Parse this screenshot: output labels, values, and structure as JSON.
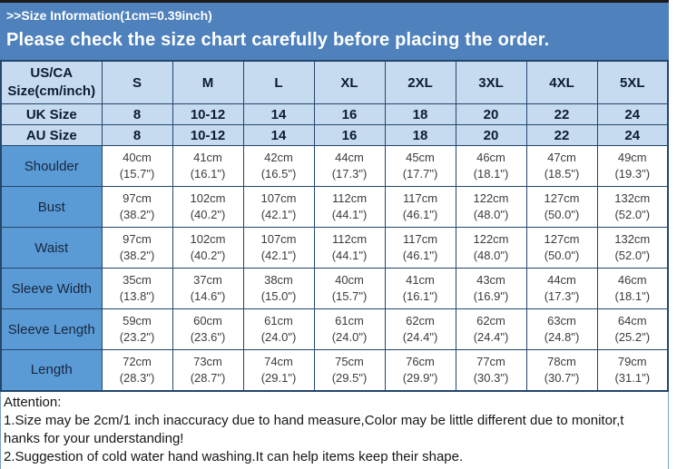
{
  "banner": {
    "size_info": ">>Size Information(1cm=0.39inch)",
    "notice": "Please check the size chart carefully before placing the order."
  },
  "table": {
    "corner_label_line1": "US/CA",
    "corner_label_line2": "Size(cm/inch)",
    "size_columns": [
      "S",
      "M",
      "L",
      "XL",
      "2XL",
      "3XL",
      "4XL",
      "5XL"
    ],
    "conversion_rows": [
      {
        "label": "UK Size",
        "values": [
          "8",
          "10-12",
          "14",
          "16",
          "18",
          "20",
          "22",
          "24"
        ]
      },
      {
        "label": "AU Size",
        "values": [
          "8",
          "10-12",
          "14",
          "16",
          "18",
          "20",
          "22",
          "24"
        ]
      }
    ],
    "measurement_rows": [
      {
        "label": "Shoulder",
        "cm": [
          "40cm",
          "41cm",
          "42cm",
          "44cm",
          "45cm",
          "46cm",
          "47cm",
          "49cm"
        ],
        "inch": [
          "(15.7\")",
          "(16.1\")",
          "(16.5\")",
          "(17.3\")",
          "(17.7\")",
          "(18.1\")",
          "(18.5\")",
          "(19.3\")"
        ]
      },
      {
        "label": "Bust",
        "cm": [
          "97cm",
          "102cm",
          "107cm",
          "112cm",
          "117cm",
          "122cm",
          "127cm",
          "132cm"
        ],
        "inch": [
          "(38.2\")",
          "(40.2\")",
          "(42.1\")",
          "(44.1\")",
          "(46.1\")",
          "(48.0\")",
          "(50.0\")",
          "(52.0\")"
        ]
      },
      {
        "label": "Waist",
        "cm": [
          "97cm",
          "102cm",
          "107cm",
          "112cm",
          "117cm",
          "122cm",
          "127cm",
          "132cm"
        ],
        "inch": [
          "(38.2\")",
          "(40.2\")",
          "(42.1\")",
          "(44.1\")",
          "(46.1\")",
          "(48.0\")",
          "(50.0\")",
          "(52.0\")"
        ]
      },
      {
        "label": "Sleeve Width",
        "cm": [
          "35cm",
          "37cm",
          "38cm",
          "40cm",
          "41cm",
          "43cm",
          "44cm",
          "46cm"
        ],
        "inch": [
          "(13.8\")",
          "(14.6\")",
          "(15.0\")",
          "(15.7\")",
          "(16.1\")",
          "(16.9\")",
          "(17.3\")",
          "(18.1\")"
        ]
      },
      {
        "label": "Sleeve Length",
        "cm": [
          "59cm",
          "60cm",
          "61cm",
          "61cm",
          "62cm",
          "62cm",
          "63cm",
          "64cm"
        ],
        "inch": [
          "(23.2\")",
          "(23.6\")",
          "(24.0\")",
          "(24.0\")",
          "(24.4\")",
          "(24.4\")",
          "(24.8\")",
          "(25.2\")"
        ]
      },
      {
        "label": "Length",
        "cm": [
          "72cm",
          "73cm",
          "74cm",
          "75cm",
          "76cm",
          "77cm",
          "78cm",
          "79cm"
        ],
        "inch": [
          "(28.3\")",
          "(28.7\")",
          "(29.1\")",
          "(29.5\")",
          "(29.9\")",
          "(30.3\")",
          "(30.7\")",
          "(31.1\")"
        ]
      }
    ]
  },
  "attention": {
    "lines": [
      "Attention:",
      "1.Size may be 2cm/1 inch inaccuracy due to hand measure,Color may be little different due to monitor,t",
      "hanks for your understanding!",
      "2.Suggestion of cold water hand washing.It can help items keep their shape."
    ]
  },
  "colors": {
    "banner_bg": "#4f81bd",
    "header_bg": "#c6dbf0",
    "row_label_bg": "#5b9bd5",
    "border": "#24466b",
    "banner_text": "#ffffff"
  }
}
